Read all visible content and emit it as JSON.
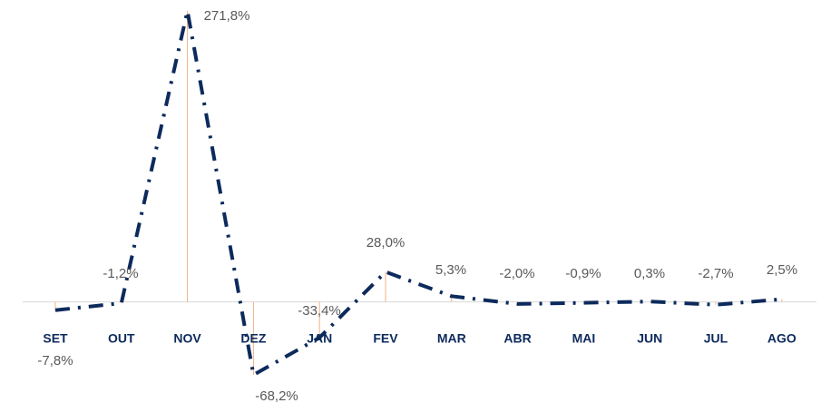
{
  "chart_data": {
    "type": "line",
    "categories": [
      "SET",
      "OUT",
      "NOV",
      "DEZ",
      "JAN",
      "FEV",
      "MAR",
      "ABR",
      "MAI",
      "JUN",
      "JUL",
      "AGO"
    ],
    "values": [
      -7.8,
      -1.2,
      271.8,
      -68.2,
      -33.4,
      28.0,
      5.3,
      -2.0,
      -0.9,
      0.3,
      -2.7,
      2.5
    ],
    "value_labels": [
      "-7,8%",
      "-1,2%",
      "271,8%",
      "-68,2%",
      "-33,4%",
      "28,0%",
      "5,3%",
      "-2,0%",
      "-0,9%",
      "0,3%",
      "-2,7%",
      "2,5%"
    ],
    "color": "#0d2a5c",
    "drop_line_color": "#f4b183"
  }
}
